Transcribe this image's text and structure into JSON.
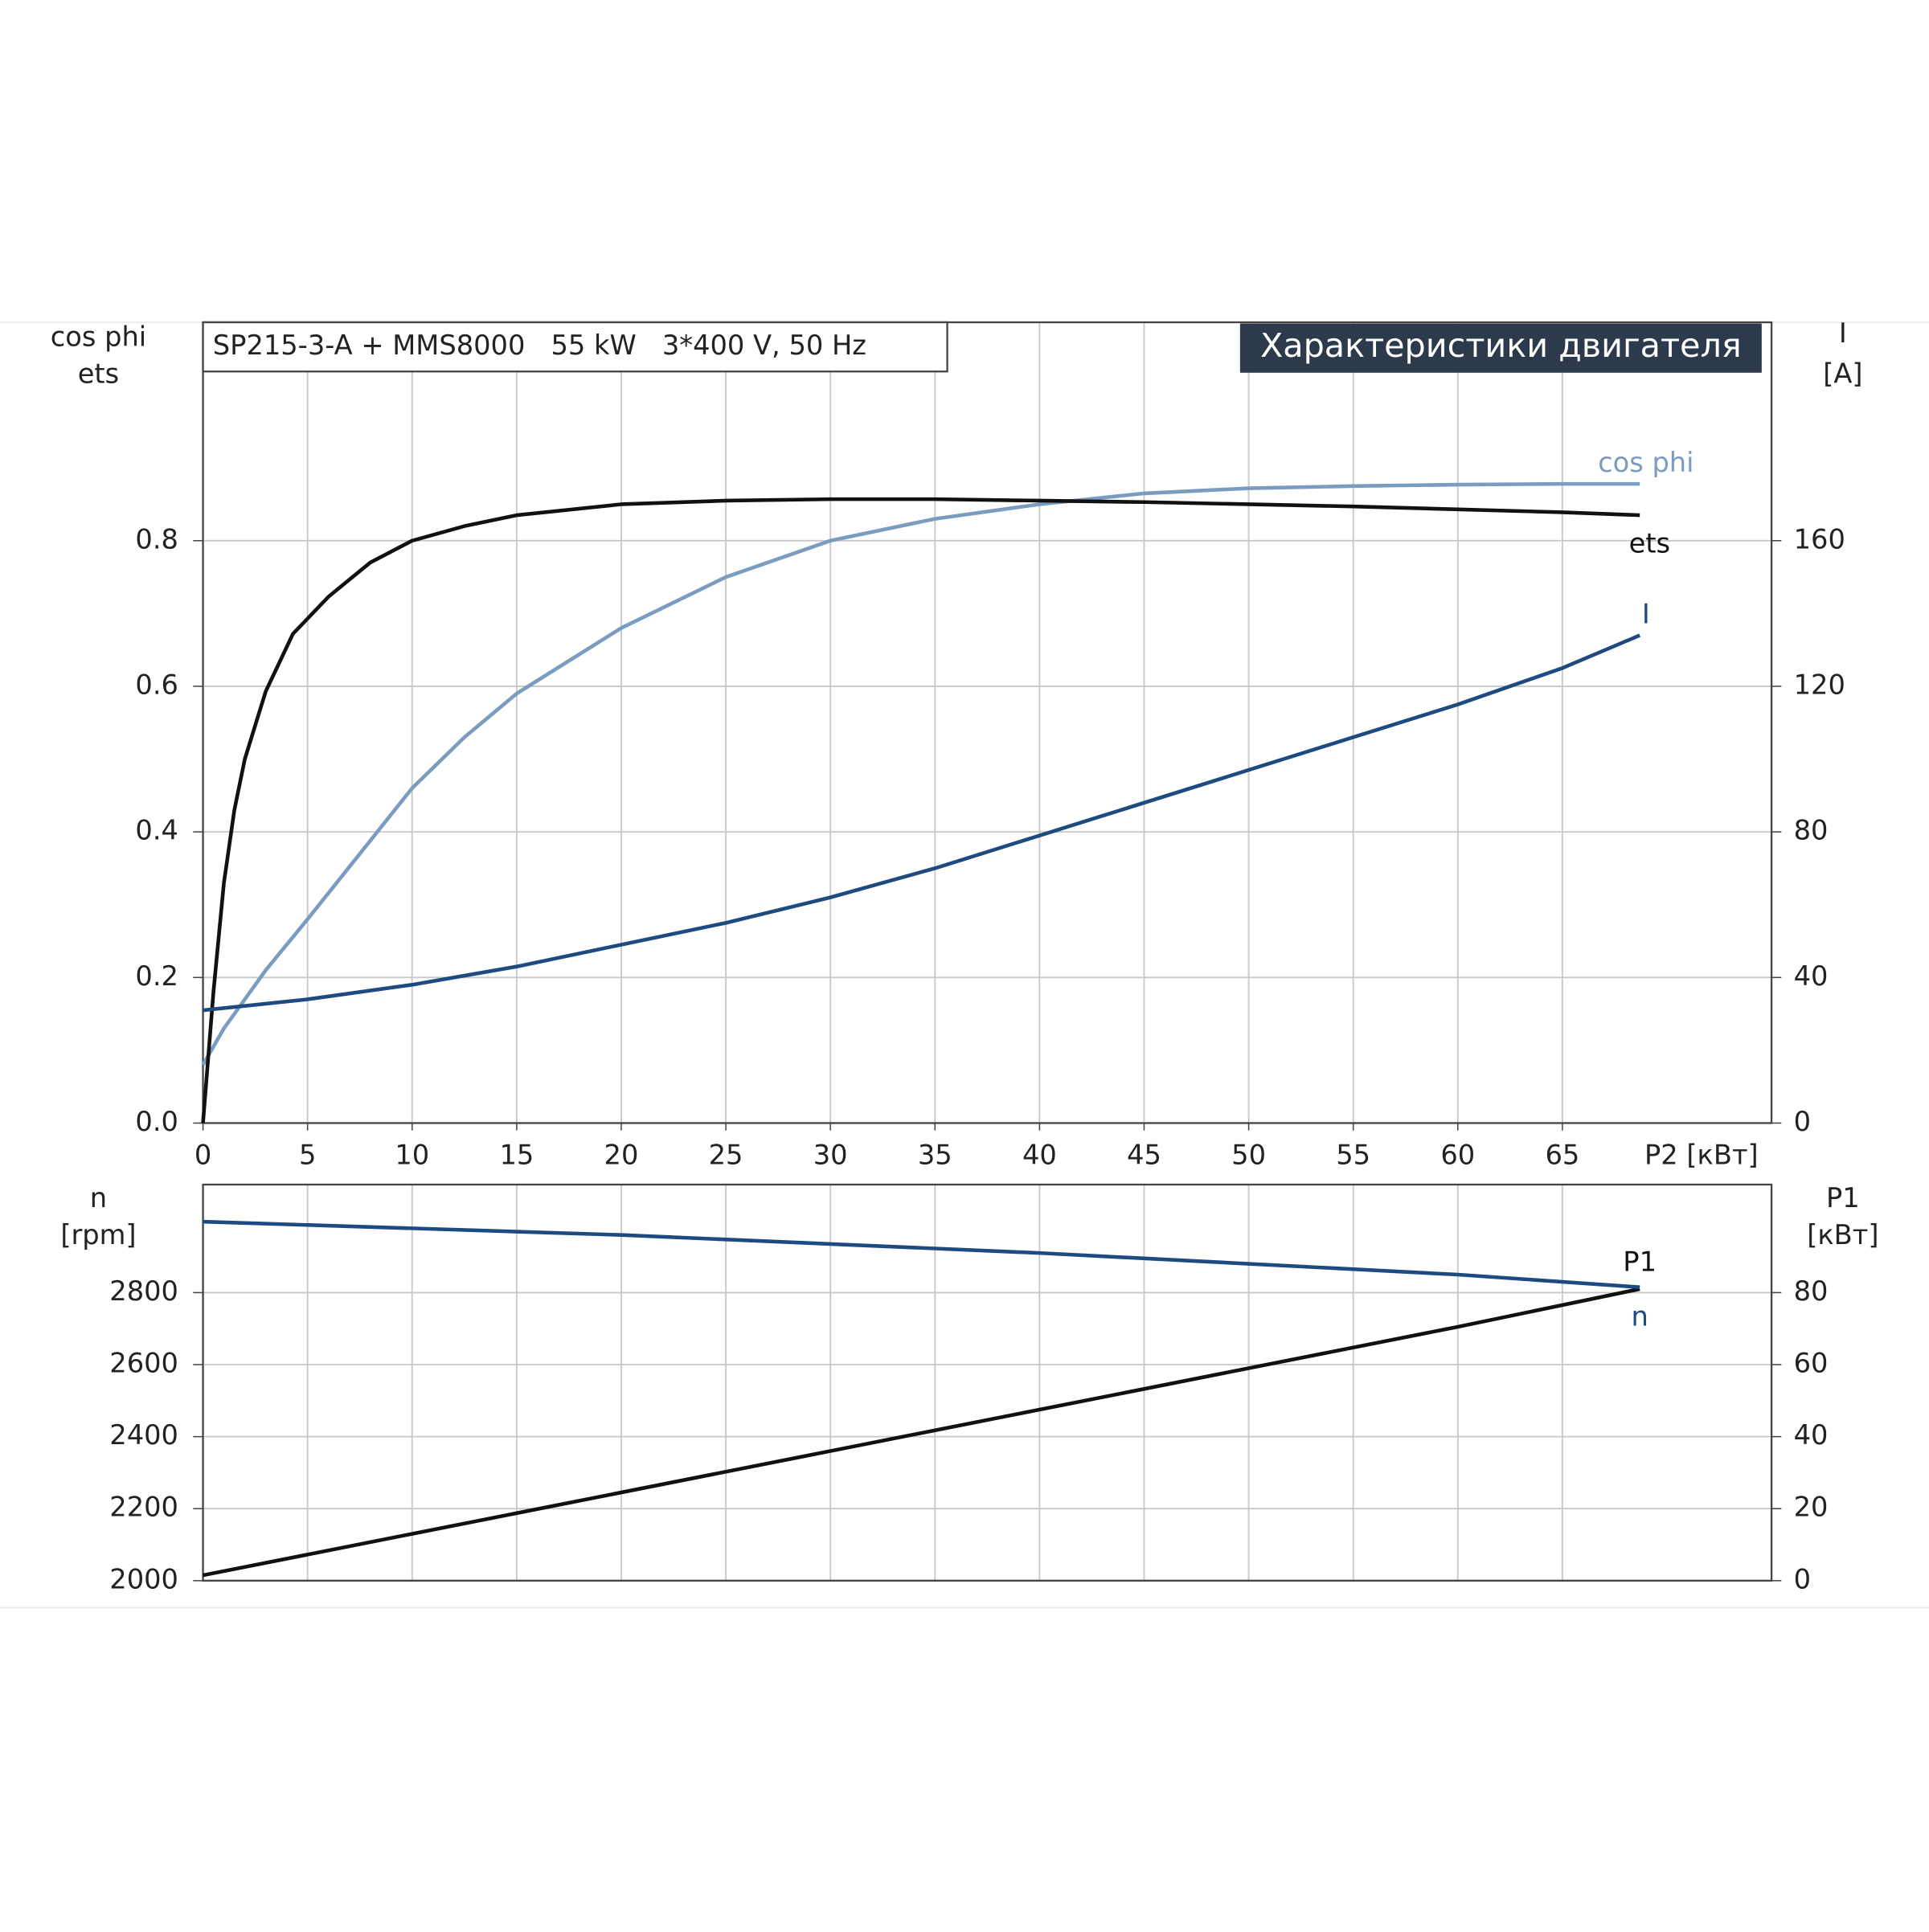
{
  "chart_data": [
    {
      "type": "line",
      "title": "Характеристики двигателя",
      "subtitle": "SP215-3-A + MMS8000   55 kW   3*400 V, 50 Hz",
      "xlabel": "P2 [кВт]",
      "ylabel": [
        "cos phi",
        "ets"
      ],
      "y2label": [
        "I",
        "[A]"
      ],
      "xlim": [
        0,
        75
      ],
      "xticks": [
        0,
        5,
        10,
        15,
        20,
        25,
        30,
        35,
        40,
        45,
        50,
        55,
        60,
        65
      ],
      "ylim": [
        0,
        1.1
      ],
      "yticks": [
        {
          "value": 0,
          "label": "0.0"
        },
        0.2,
        0.4,
        0.6,
        0.8
      ],
      "y2lim": [
        0,
        220
      ],
      "y2ticks": [
        0,
        40,
        80,
        120,
        160
      ],
      "grid": true,
      "series": [
        {
          "name": "cos phi",
          "color": "#7a9cc0",
          "x": [
            0,
            1,
            2,
            3,
            5,
            7.5,
            10,
            12.5,
            15,
            20,
            25,
            30,
            35,
            40,
            45,
            50,
            55,
            60,
            65,
            68.7
          ],
          "values": [
            0.08,
            0.13,
            0.17,
            0.21,
            0.28,
            0.37,
            0.46,
            0.53,
            0.59,
            0.68,
            0.75,
            0.8,
            0.83,
            0.85,
            0.865,
            0.872,
            0.875,
            0.877,
            0.878,
            0.878
          ]
        },
        {
          "name": "ets",
          "color": "#111111",
          "x": [
            0,
            0.5,
            1,
            1.5,
            2,
            3,
            4.3,
            6,
            8,
            10,
            12.5,
            15,
            20,
            25,
            30,
            35,
            40,
            45,
            50,
            55,
            60,
            65,
            68.7
          ],
          "values": [
            0,
            0.18,
            0.33,
            0.43,
            0.5,
            0.593,
            0.672,
            0.723,
            0.77,
            0.8,
            0.82,
            0.835,
            0.85,
            0.855,
            0.857,
            0.857,
            0.855,
            0.853,
            0.85,
            0.847,
            0.843,
            0.839,
            0.835
          ]
        },
        {
          "name": "I",
          "color": "#1d4a80",
          "axis": "y2",
          "x": [
            0,
            5,
            10,
            15,
            20,
            25,
            30,
            35,
            40,
            45,
            50,
            55,
            60,
            65,
            68.7
          ],
          "values": [
            31,
            34,
            38,
            43,
            49,
            55,
            62,
            70,
            79,
            88,
            97,
            106,
            115,
            125,
            134
          ]
        }
      ]
    },
    {
      "type": "line",
      "ylabel": [
        "n",
        "[rpm]"
      ],
      "y2label": [
        "P1",
        "[кВт]"
      ],
      "xlim": [
        0,
        75
      ],
      "ylim": [
        2000,
        3100
      ],
      "yticks": [
        2000,
        2200,
        2400,
        2600,
        2800
      ],
      "y2lim": [
        0,
        110
      ],
      "y2ticks": [
        0,
        20,
        40,
        60,
        80
      ],
      "grid": true,
      "series": [
        {
          "name": "P1",
          "color": "#111111",
          "axis": "y2",
          "x": [
            0,
            20,
            40,
            60,
            68.7
          ],
          "values": [
            1.5,
            24.5,
            47.5,
            70.5,
            81
          ]
        },
        {
          "name": "n",
          "color": "#1d4a80",
          "x": [
            0,
            20,
            40,
            60,
            68.7
          ],
          "values": [
            2997,
            2960,
            2910,
            2850,
            2815
          ]
        }
      ]
    }
  ]
}
